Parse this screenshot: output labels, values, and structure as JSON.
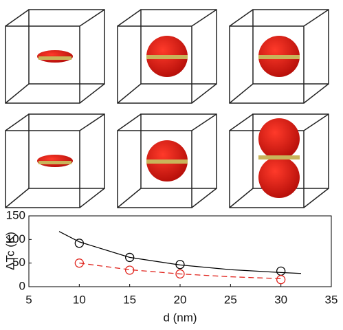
{
  "chart_data": {
    "type": "line",
    "xlabel": "d (nm)",
    "ylabel": "ΔTc (K)",
    "xlim": [
      5,
      35
    ],
    "xticks": [
      5,
      10,
      15,
      20,
      25,
      30,
      35
    ],
    "ylim": [
      0,
      150
    ],
    "yticks": [
      0,
      50,
      100,
      150
    ],
    "series": [
      {
        "color": "#000000",
        "marker": "circle",
        "linestyle": "none",
        "x": [
          10,
          15,
          20,
          30
        ],
        "values": [
          92,
          62,
          47,
          33
        ]
      },
      {
        "color": "#e0231c",
        "marker": "circle",
        "linestyle": "none",
        "x": [
          10,
          15,
          20,
          30
        ],
        "values": [
          50,
          35,
          27,
          15
        ]
      },
      {
        "color": "#000000",
        "marker": "none",
        "linestyle": "solid",
        "x": [
          8,
          10,
          15,
          20,
          25,
          30,
          32
        ],
        "values": [
          117,
          95,
          62,
          46,
          36,
          30,
          28
        ]
      },
      {
        "color": "#e0231c",
        "marker": "none",
        "linestyle": "dashed",
        "x": [
          10,
          15,
          20,
          25,
          30
        ],
        "values": [
          50,
          36,
          27,
          21,
          17
        ]
      }
    ]
  }
}
